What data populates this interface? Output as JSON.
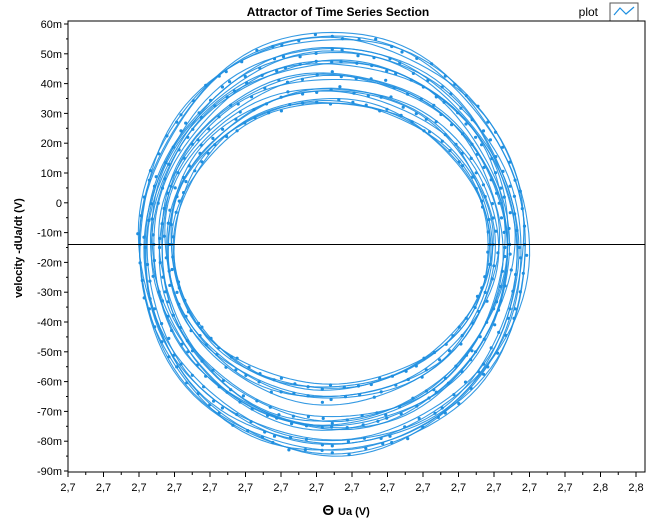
{
  "chart_data": {
    "type": "scatter",
    "title": "Attractor of Time Series Section",
    "xlabel_symbol": "Θ",
    "xlabel": "Ua (V)",
    "ylabel": "velocity -dUa/dt  (V)",
    "x_ticks": [
      "2,7",
      "2,7",
      "2,7",
      "2,7",
      "2,7",
      "2,7",
      "2,7",
      "2,7",
      "2,7",
      "2,7",
      "2,7",
      "2,7",
      "2,7",
      "2,7",
      "2,7",
      "2,8",
      "2,8"
    ],
    "y_ticks": [
      "60m",
      "50m",
      "40m",
      "30m",
      "20m",
      "10m",
      "0",
      "-10m",
      "-20m",
      "-30m",
      "-40m",
      "-50m",
      "-60m",
      "-70m",
      "-80m",
      "-90m"
    ],
    "ylim": [
      -90,
      60
    ],
    "y_unit": "mV",
    "crosshair_y": -14,
    "legend": {
      "label": "plot",
      "position": "top-right"
    },
    "series": [
      {
        "line_color": "#1f8fe0",
        "loops": [
          {
            "cx": 0.455,
            "cy": -14,
            "rx": 0.275,
            "ry": 48
          },
          {
            "cx": 0.456,
            "cy": -14,
            "rx": 0.285,
            "ry": 52
          },
          {
            "cx": 0.458,
            "cy": -15,
            "rx": 0.3,
            "ry": 58
          },
          {
            "cx": 0.457,
            "cy": -14,
            "rx": 0.31,
            "ry": 62
          },
          {
            "cx": 0.458,
            "cy": -15,
            "rx": 0.325,
            "ry": 66
          },
          {
            "cx": 0.458,
            "cy": -14,
            "rx": 0.335,
            "ry": 70
          }
        ]
      }
    ]
  }
}
